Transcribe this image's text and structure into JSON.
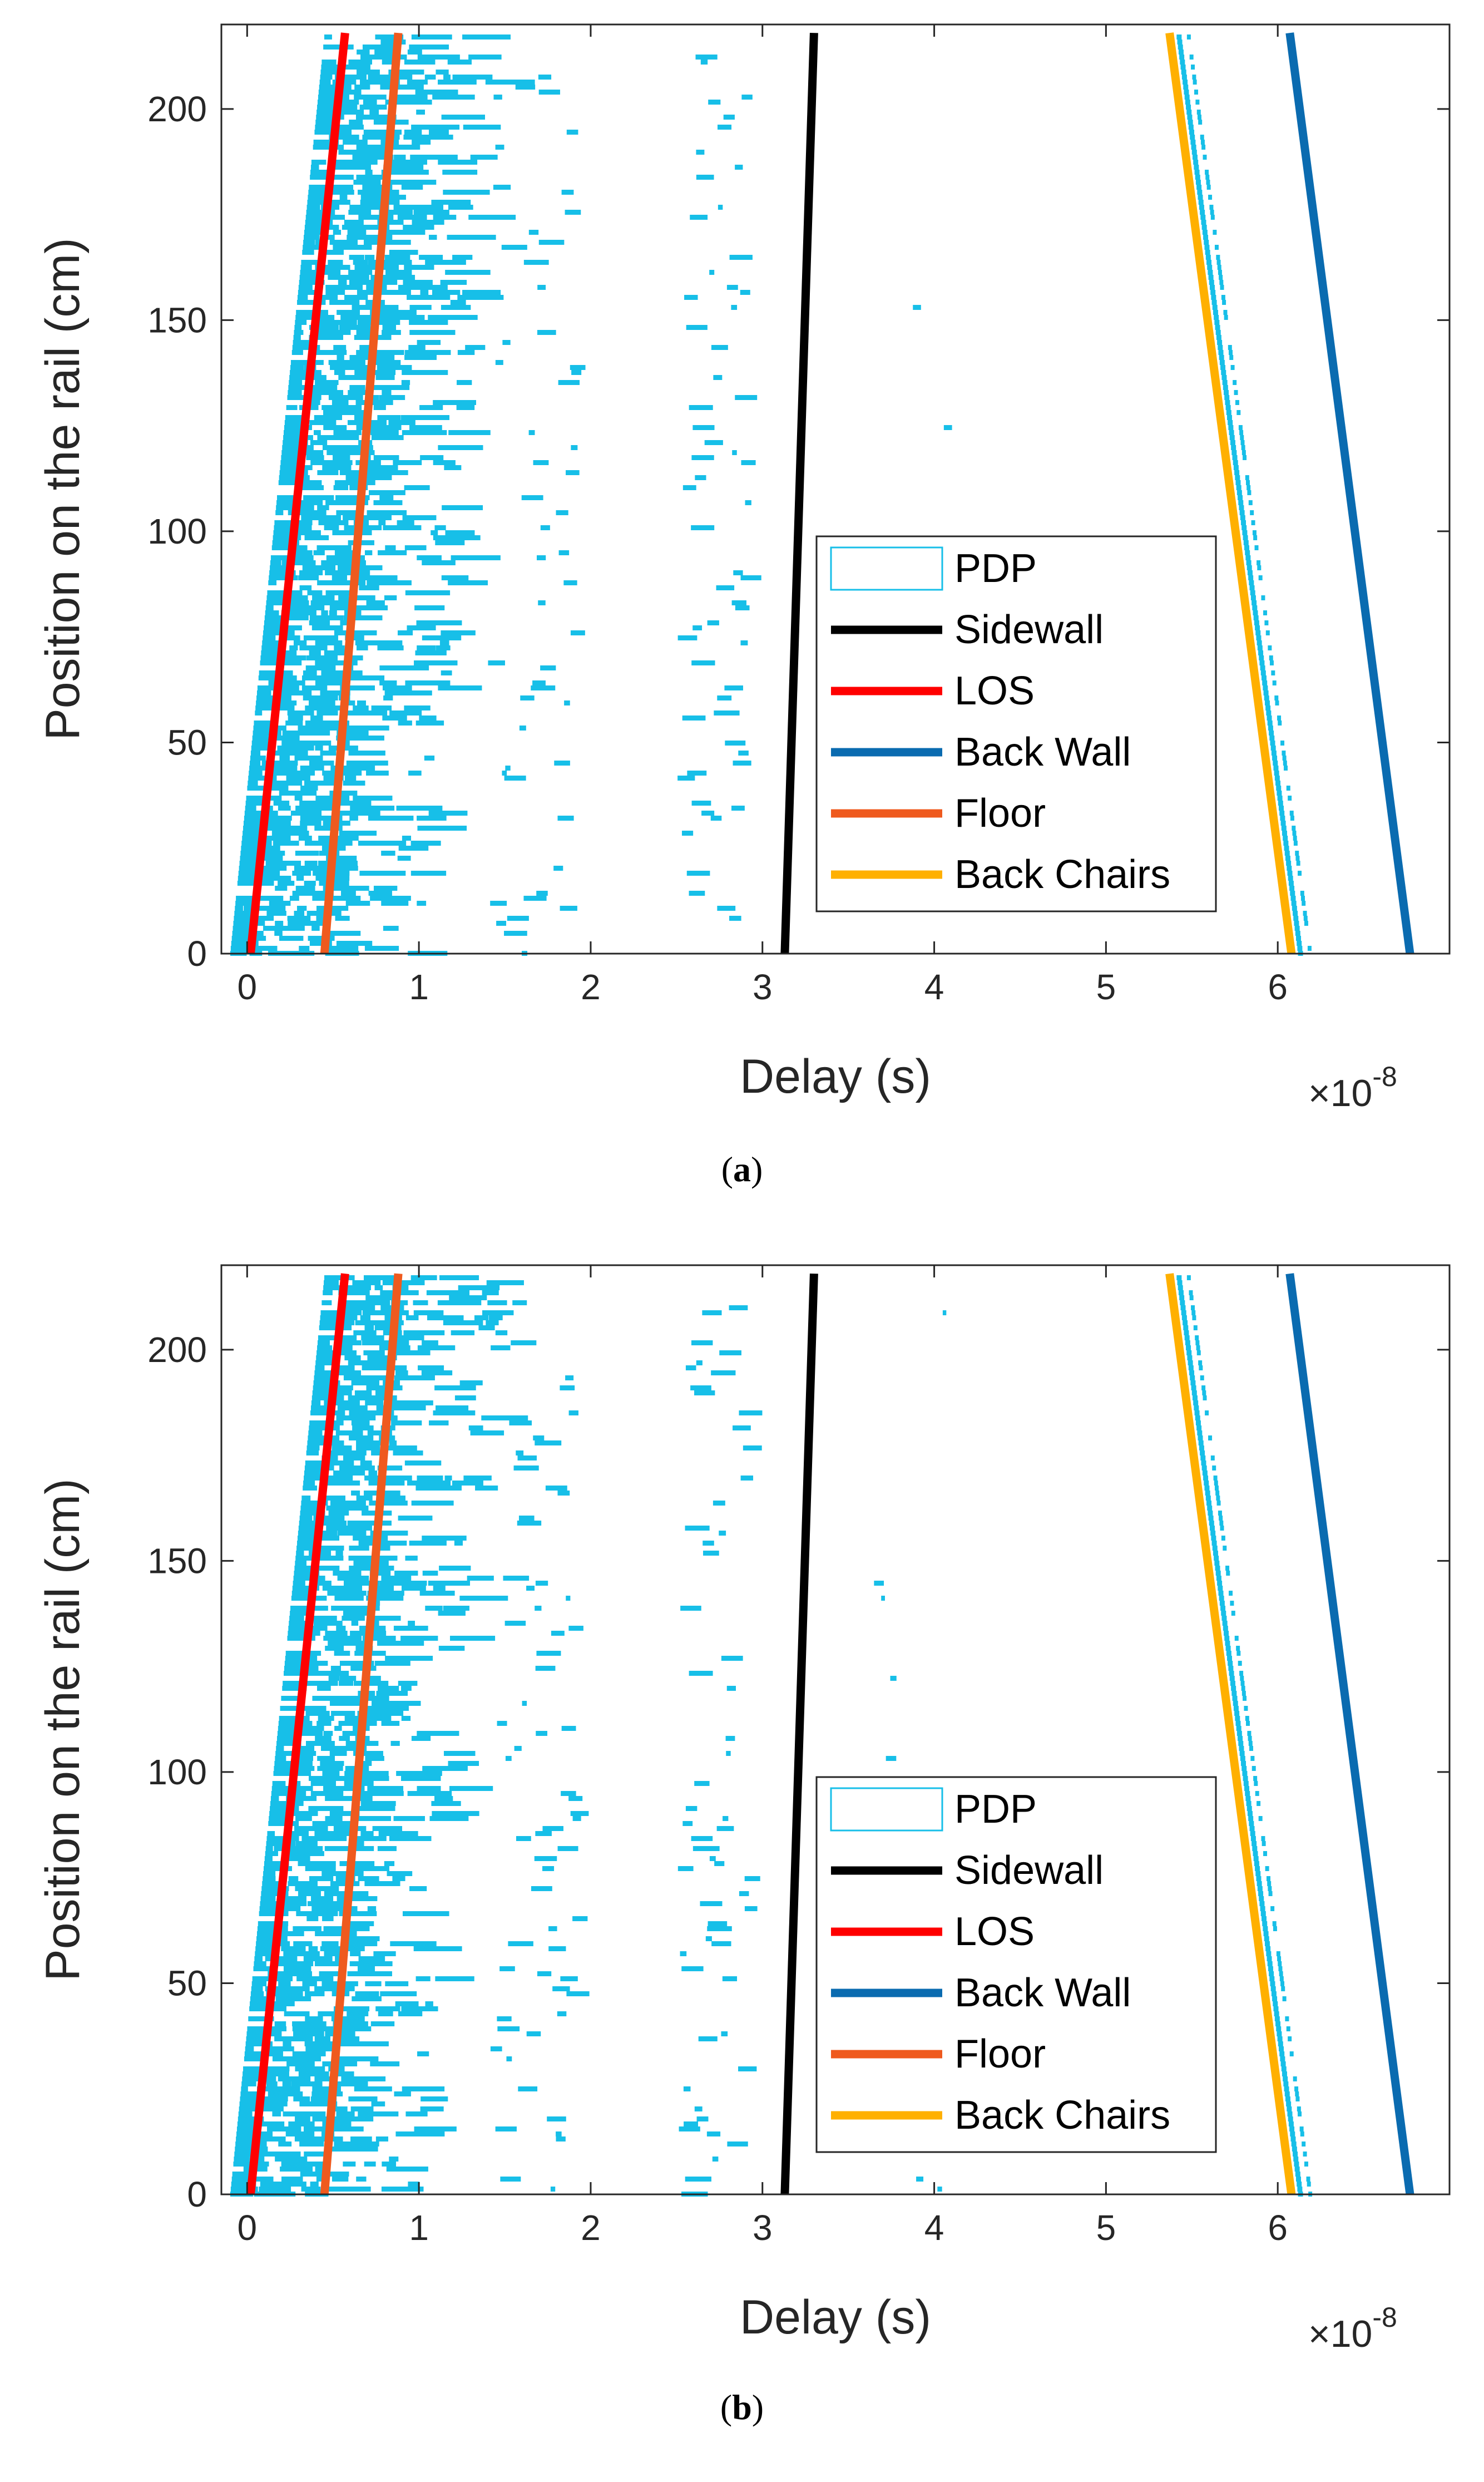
{
  "chart_data": [
    {
      "type": "line",
      "panel_label": "a",
      "caption_open": "(",
      "caption_close": ")",
      "xlabel": "Delay (s)",
      "ylabel": "Position on the rail (cm)",
      "x_multiplier": "×10",
      "x_exponent": "-8",
      "xlim": [
        -0.15,
        7.0
      ],
      "ylim": [
        0,
        220
      ],
      "xticks": [
        0,
        1,
        2,
        3,
        4,
        5,
        6
      ],
      "yticks": [
        0,
        50,
        100,
        150,
        200
      ],
      "grid": false,
      "legend_position": "lower-right",
      "series": [
        {
          "name": "PDP",
          "kind": "patch",
          "color": "#17bfe8"
        },
        {
          "name": "Sidewall",
          "color": "#000000",
          "x": [
            3.13,
            3.3
          ],
          "y": [
            0,
            218
          ]
        },
        {
          "name": "LOS",
          "color": "#ff0000",
          "x": [
            0.02,
            0.57
          ],
          "y": [
            0,
            218
          ]
        },
        {
          "name": "Back Wall",
          "color": "#0a6bb0",
          "x": [
            6.77,
            6.07
          ],
          "y": [
            0,
            218
          ]
        },
        {
          "name": "Floor",
          "color": "#ef5a1e",
          "x": [
            0.45,
            0.88
          ],
          "y": [
            0,
            218
          ]
        },
        {
          "name": "Back Chairs",
          "color": "#ffb000",
          "x": [
            6.08,
            5.37
          ],
          "y": [
            0,
            218
          ]
        }
      ]
    },
    {
      "type": "line",
      "panel_label": "b",
      "caption_open": "(",
      "caption_close": ")",
      "xlabel": "Delay (s)",
      "ylabel": "Position on the rail (cm)",
      "x_multiplier": "×10",
      "x_exponent": "-8",
      "xlim": [
        -0.15,
        7.0
      ],
      "ylim": [
        0,
        220
      ],
      "xticks": [
        0,
        1,
        2,
        3,
        4,
        5,
        6
      ],
      "yticks": [
        0,
        50,
        100,
        150,
        200
      ],
      "grid": false,
      "legend_position": "lower-right",
      "series": [
        {
          "name": "PDP",
          "kind": "patch",
          "color": "#17bfe8"
        },
        {
          "name": "Sidewall",
          "color": "#000000",
          "x": [
            3.13,
            3.3
          ],
          "y": [
            0,
            218
          ]
        },
        {
          "name": "LOS",
          "color": "#ff0000",
          "x": [
            0.02,
            0.57
          ],
          "y": [
            0,
            218
          ]
        },
        {
          "name": "Back Wall",
          "color": "#0a6bb0",
          "x": [
            6.77,
            6.07
          ],
          "y": [
            0,
            218
          ]
        },
        {
          "name": "Floor",
          "color": "#ef5a1e",
          "x": [
            0.45,
            0.88
          ],
          "y": [
            0,
            218
          ]
        },
        {
          "name": "Back Chairs",
          "color": "#ffb000",
          "x": [
            6.08,
            5.37
          ],
          "y": [
            0,
            218
          ]
        }
      ]
    }
  ]
}
